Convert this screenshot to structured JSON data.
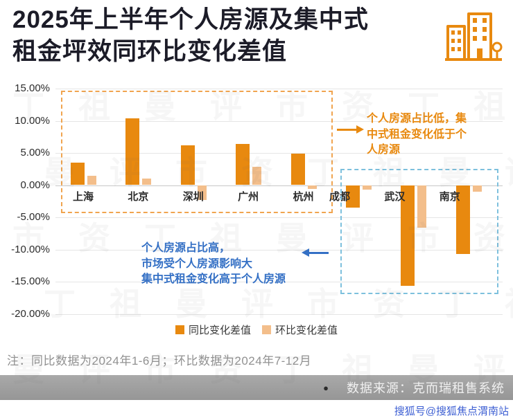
{
  "page": {
    "title": "2025年上半年个人房源及集中式\n租金坪效同环比变化差值",
    "note": "注：同比数据为2024年1-6月；环比数据为2024年7-12月",
    "source_bullet": "●",
    "source": "数据来源：克而瑞租售系统",
    "watermark_brand": "搜狐号@搜狐焦点渭南站",
    "bg_watermark_chars": [
      "丁",
      "祖",
      "曼",
      "评",
      "市",
      "资"
    ]
  },
  "annotations": {
    "right_note": "个人房源占比低，集\n中式租金变化低于个\n人房源",
    "left_note": "个人房源占比高，\n市场受个人房源影响大\n集中式租金变化高于个人房源",
    "right_color": "#E8890F",
    "left_color": "#3470C5",
    "orange_box_color": "#F0A44F",
    "blue_box_color": "#7DC0DD"
  },
  "chart_data": {
    "type": "bar",
    "title": "2025年上半年个人房源及集中式租金坪效同环比变化差值",
    "categories": [
      "上海",
      "北京",
      "深圳",
      "广州",
      "杭州",
      "成都",
      "武汉",
      "南京"
    ],
    "series": [
      {
        "name": "同比变化差值",
        "color": "#E8890F",
        "values": [
          3.5,
          10.4,
          6.2,
          6.4,
          4.9,
          -3.5,
          -15.6,
          -10.7
        ]
      },
      {
        "name": "环比变化差值",
        "color": "#F3BE8B",
        "values": [
          1.4,
          1.0,
          -2.3,
          2.8,
          -0.6,
          -0.7,
          -6.6,
          -1.0
        ]
      }
    ],
    "ylim": [
      -20,
      15
    ],
    "ytick_step": 5,
    "ytick_labels": [
      "15.00%",
      "10.00%",
      "5.00%",
      "0.00%",
      "-5.00%",
      "-10.00%",
      "-15.00%",
      "-20.00%"
    ],
    "grid": true,
    "legend_position": "bottom",
    "highlight_groups": [
      {
        "box": "orange-dashed-box",
        "cities": [
          "上海",
          "北京",
          "深圳",
          "广州",
          "杭州"
        ]
      },
      {
        "box": "blue-dashed-box",
        "cities": [
          "成都",
          "武汉",
          "南京"
        ]
      }
    ]
  }
}
